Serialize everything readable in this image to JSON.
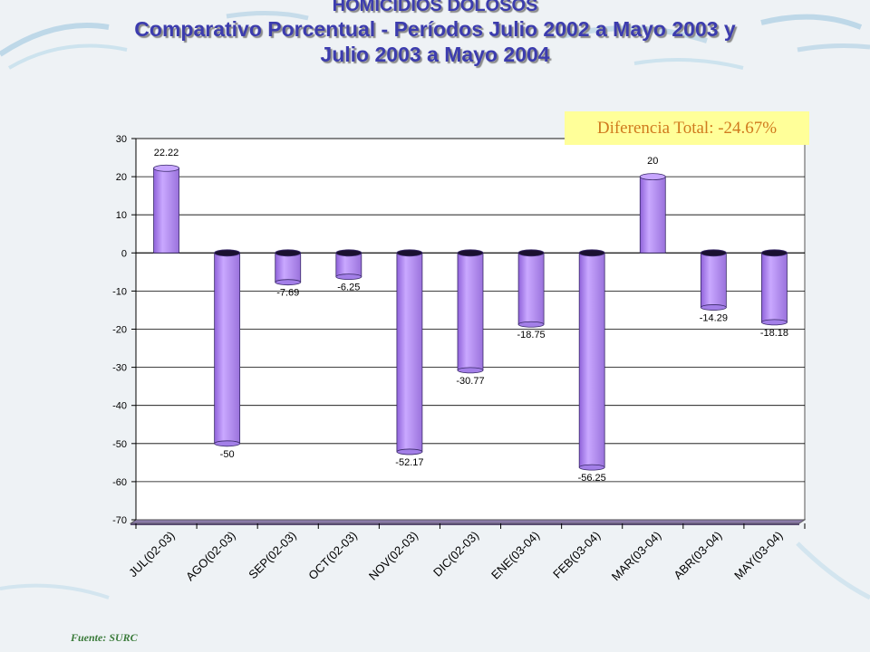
{
  "header": {
    "line1": "HOMICIDIOS DOLOSOS",
    "line2": "Comparativo Porcentual - Períodos Julio 2002 a Mayo 2003 y",
    "line3": "Julio 2003 a Mayo 2004"
  },
  "total_label": "Diferencia Total: -24.67%",
  "source": "Fuente: SURC",
  "colors": {
    "bar": "#b48cf0",
    "bar_dark": "#7a52c4",
    "title": "#3c3cae",
    "floor": "#8a7aa8"
  },
  "chart_data": {
    "type": "bar",
    "categories": [
      "JUL(02-03)",
      "AGO(02-03)",
      "SEP(02-03)",
      "OCT(02-03)",
      "NOV(02-03)",
      "DIC(02-03)",
      "ENE(03-04)",
      "FEB(03-04)",
      "MAR(03-04)",
      "ABR(03-04)",
      "MAY(03-04)"
    ],
    "values": [
      22.22,
      -50,
      -7.69,
      -6.25,
      -52.17,
      -30.77,
      -18.75,
      -56.25,
      20,
      -14.29,
      -18.18
    ],
    "data_labels": [
      "22.22",
      "-50",
      "-7.69",
      "-6.25",
      "-52.17",
      "-30.77",
      "-18.75",
      "-56.25",
      "20",
      "-14.29",
      "-18.18"
    ],
    "ylim": [
      -70,
      30
    ],
    "yticks": [
      30,
      20,
      10,
      0,
      -10,
      -20,
      -30,
      -40,
      -50,
      -60,
      -70
    ],
    "grid": true,
    "legend": "none"
  }
}
